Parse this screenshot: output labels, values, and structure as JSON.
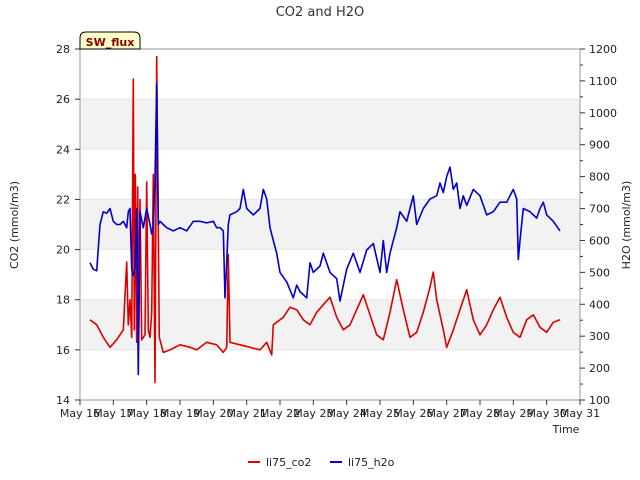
{
  "chart_data": {
    "type": "line",
    "title": "CO2 and H2O",
    "xlabel": "Time",
    "ylabel_left": "CO2 (mmol/m3)",
    "ylabel_right": "H2O (mmol/m3)",
    "badge": "SW_flux",
    "x_ticks": [
      "May 16",
      "May 17",
      "May 18",
      "May 19",
      "May 20",
      "May 21",
      "May 22",
      "May 23",
      "May 24",
      "May 25",
      "May 26",
      "May 27",
      "May 28",
      "May 29",
      "May 30",
      "May 31"
    ],
    "y_left_range": [
      14,
      28
    ],
    "y_left_ticks": [
      "14",
      "16",
      "18",
      "20",
      "22",
      "24",
      "26",
      "28"
    ],
    "y_right_range": [
      100,
      1200
    ],
    "y_right_ticks": [
      "100",
      "200",
      "300",
      "400",
      "500",
      "600",
      "700",
      "800",
      "900",
      "1000",
      "1100",
      "1200"
    ],
    "grid": "alternating horizontal bands",
    "legend_position": "bottom-center",
    "series": [
      {
        "name": "li75_co2",
        "axis": "left",
        "color": "#dd0000",
        "points": [
          [
            16.3,
            17.2
          ],
          [
            16.5,
            17.0
          ],
          [
            16.7,
            16.5
          ],
          [
            16.9,
            16.1
          ],
          [
            17.1,
            16.4
          ],
          [
            17.3,
            16.8
          ],
          [
            17.4,
            19.5
          ],
          [
            17.45,
            17.0
          ],
          [
            17.5,
            18.0
          ],
          [
            17.55,
            16.5
          ],
          [
            17.6,
            26.8
          ],
          [
            17.63,
            16.8
          ],
          [
            17.66,
            23.0
          ],
          [
            17.7,
            16.3
          ],
          [
            17.73,
            22.5
          ],
          [
            17.76,
            16.5
          ],
          [
            17.8,
            22.0
          ],
          [
            17.85,
            16.4
          ],
          [
            17.95,
            16.6
          ],
          [
            18.0,
            22.7
          ],
          [
            18.05,
            16.8
          ],
          [
            18.1,
            16.5
          ],
          [
            18.15,
            17.5
          ],
          [
            18.2,
            23.0
          ],
          [
            18.25,
            14.7
          ],
          [
            18.3,
            27.7
          ],
          [
            18.38,
            16.5
          ],
          [
            18.5,
            15.9
          ],
          [
            18.7,
            16.0
          ],
          [
            19.0,
            16.2
          ],
          [
            19.3,
            16.1
          ],
          [
            19.5,
            16.0
          ],
          [
            19.8,
            16.3
          ],
          [
            20.1,
            16.2
          ],
          [
            20.3,
            15.9
          ],
          [
            20.4,
            16.1
          ],
          [
            20.45,
            19.8
          ],
          [
            20.5,
            16.3
          ],
          [
            20.8,
            16.2
          ],
          [
            21.1,
            16.1
          ],
          [
            21.4,
            16.0
          ],
          [
            21.6,
            16.3
          ],
          [
            21.75,
            15.8
          ],
          [
            21.8,
            17.0
          ],
          [
            22.0,
            17.2
          ],
          [
            22.1,
            17.3
          ],
          [
            22.3,
            17.7
          ],
          [
            22.5,
            17.6
          ],
          [
            22.7,
            17.2
          ],
          [
            22.9,
            17.0
          ],
          [
            23.1,
            17.5
          ],
          [
            23.3,
            17.8
          ],
          [
            23.5,
            18.1
          ],
          [
            23.7,
            17.3
          ],
          [
            23.9,
            16.8
          ],
          [
            24.1,
            17.0
          ],
          [
            24.3,
            17.6
          ],
          [
            24.5,
            18.2
          ],
          [
            24.7,
            17.4
          ],
          [
            24.9,
            16.6
          ],
          [
            25.1,
            16.4
          ],
          [
            25.3,
            17.5
          ],
          [
            25.5,
            18.8
          ],
          [
            25.7,
            17.6
          ],
          [
            25.9,
            16.5
          ],
          [
            26.1,
            16.7
          ],
          [
            26.3,
            17.5
          ],
          [
            26.5,
            18.5
          ],
          [
            26.6,
            19.1
          ],
          [
            26.7,
            18.0
          ],
          [
            26.9,
            16.8
          ],
          [
            27.0,
            16.1
          ],
          [
            27.2,
            16.8
          ],
          [
            27.4,
            17.6
          ],
          [
            27.6,
            18.4
          ],
          [
            27.8,
            17.2
          ],
          [
            28.0,
            16.6
          ],
          [
            28.2,
            17.0
          ],
          [
            28.4,
            17.6
          ],
          [
            28.6,
            18.1
          ],
          [
            28.8,
            17.3
          ],
          [
            29.0,
            16.7
          ],
          [
            29.2,
            16.5
          ],
          [
            29.4,
            17.2
          ],
          [
            29.6,
            17.4
          ],
          [
            29.8,
            16.9
          ],
          [
            30.0,
            16.7
          ],
          [
            30.2,
            17.1
          ],
          [
            30.4,
            17.2
          ]
        ]
      },
      {
        "name": "li75_h2o",
        "axis": "right",
        "color": "#0000cc",
        "points": [
          [
            16.3,
            530
          ],
          [
            16.4,
            510
          ],
          [
            16.5,
            505
          ],
          [
            16.6,
            650
          ],
          [
            16.7,
            690
          ],
          [
            16.8,
            685
          ],
          [
            16.9,
            700
          ],
          [
            17.0,
            660
          ],
          [
            17.1,
            650
          ],
          [
            17.2,
            650
          ],
          [
            17.3,
            660
          ],
          [
            17.4,
            640
          ],
          [
            17.45,
            690
          ],
          [
            17.5,
            700
          ],
          [
            17.55,
            510
          ],
          [
            17.6,
            490
          ],
          [
            17.65,
            520
          ],
          [
            17.7,
            700
          ],
          [
            17.75,
            180
          ],
          [
            17.8,
            690
          ],
          [
            17.9,
            640
          ],
          [
            18.0,
            700
          ],
          [
            18.1,
            650
          ],
          [
            18.15,
            620
          ],
          [
            18.2,
            640
          ],
          [
            18.25,
            790
          ],
          [
            18.3,
            1090
          ],
          [
            18.35,
            650
          ],
          [
            18.4,
            660
          ],
          [
            18.5,
            650
          ],
          [
            18.6,
            640
          ],
          [
            18.8,
            630
          ],
          [
            19.0,
            640
          ],
          [
            19.2,
            630
          ],
          [
            19.4,
            660
          ],
          [
            19.6,
            660
          ],
          [
            19.8,
            655
          ],
          [
            20.0,
            660
          ],
          [
            20.1,
            640
          ],
          [
            20.2,
            640
          ],
          [
            20.3,
            630
          ],
          [
            20.35,
            420
          ],
          [
            20.4,
            530
          ],
          [
            20.45,
            650
          ],
          [
            20.5,
            680
          ],
          [
            20.7,
            690
          ],
          [
            20.8,
            700
          ],
          [
            20.9,
            760
          ],
          [
            21.0,
            700
          ],
          [
            21.2,
            680
          ],
          [
            21.4,
            700
          ],
          [
            21.5,
            760
          ],
          [
            21.6,
            730
          ],
          [
            21.7,
            640
          ],
          [
            21.8,
            600
          ],
          [
            21.9,
            560
          ],
          [
            22.0,
            500
          ],
          [
            22.2,
            470
          ],
          [
            22.4,
            420
          ],
          [
            22.5,
            460
          ],
          [
            22.6,
            440
          ],
          [
            22.8,
            420
          ],
          [
            22.9,
            530
          ],
          [
            23.0,
            500
          ],
          [
            23.2,
            520
          ],
          [
            23.3,
            560
          ],
          [
            23.5,
            500
          ],
          [
            23.7,
            480
          ],
          [
            23.8,
            410
          ],
          [
            24.0,
            510
          ],
          [
            24.2,
            560
          ],
          [
            24.4,
            500
          ],
          [
            24.6,
            570
          ],
          [
            24.8,
            590
          ],
          [
            25.0,
            500
          ],
          [
            25.1,
            600
          ],
          [
            25.2,
            500
          ],
          [
            25.3,
            560
          ],
          [
            25.5,
            640
          ],
          [
            25.6,
            690
          ],
          [
            25.8,
            660
          ],
          [
            25.9,
            700
          ],
          [
            26.0,
            740
          ],
          [
            26.1,
            650
          ],
          [
            26.3,
            700
          ],
          [
            26.5,
            730
          ],
          [
            26.7,
            740
          ],
          [
            26.8,
            780
          ],
          [
            26.9,
            750
          ],
          [
            27.0,
            800
          ],
          [
            27.1,
            830
          ],
          [
            27.2,
            760
          ],
          [
            27.3,
            780
          ],
          [
            27.4,
            700
          ],
          [
            27.5,
            740
          ],
          [
            27.6,
            710
          ],
          [
            27.8,
            760
          ],
          [
            28.0,
            740
          ],
          [
            28.2,
            680
          ],
          [
            28.4,
            690
          ],
          [
            28.6,
            720
          ],
          [
            28.8,
            720
          ],
          [
            29.0,
            760
          ],
          [
            29.1,
            730
          ],
          [
            29.15,
            540
          ],
          [
            29.2,
            600
          ],
          [
            29.3,
            700
          ],
          [
            29.5,
            690
          ],
          [
            29.7,
            670
          ],
          [
            29.8,
            700
          ],
          [
            29.9,
            720
          ],
          [
            30.0,
            680
          ],
          [
            30.2,
            660
          ],
          [
            30.4,
            630
          ]
        ]
      }
    ]
  }
}
